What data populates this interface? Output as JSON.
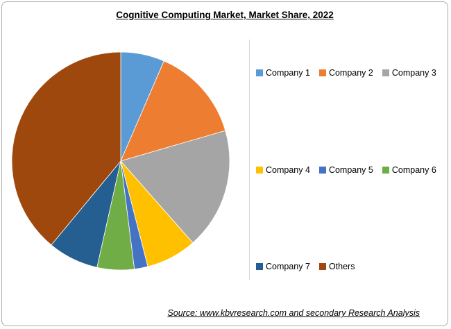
{
  "header": {
    "title": "Cognitive Computing Market, Market Share, 2022"
  },
  "footer": {
    "source": "Source: www.kbvresearch.com and secondary Research Analysis"
  },
  "chart_data": {
    "type": "pie",
    "title": "Cognitive Computing Market, Market Share, 2022",
    "labels": [
      "Company 1",
      "Company 2",
      "Company 3",
      "Company 4",
      "Company 5",
      "Company 6",
      "Company 7",
      "Others"
    ],
    "values": [
      6.5,
      14,
      18,
      7.5,
      2,
      5.5,
      7.5,
      39
    ],
    "colors": [
      "#5B9BD5",
      "#ED7D31",
      "#A5A5A5",
      "#FFC000",
      "#4472C4",
      "#70AD47",
      "#255E91",
      "#9E480E"
    ],
    "start_angle_deg": 0,
    "direction": "clockwise",
    "legend_position": "right",
    "legend_rows": [
      [
        0,
        1,
        2
      ],
      [
        3,
        4,
        5
      ],
      [
        6,
        7
      ]
    ],
    "value_labels_shown": false,
    "source": "Source: www.kbvresearch.com and secondary Research Analysis"
  }
}
